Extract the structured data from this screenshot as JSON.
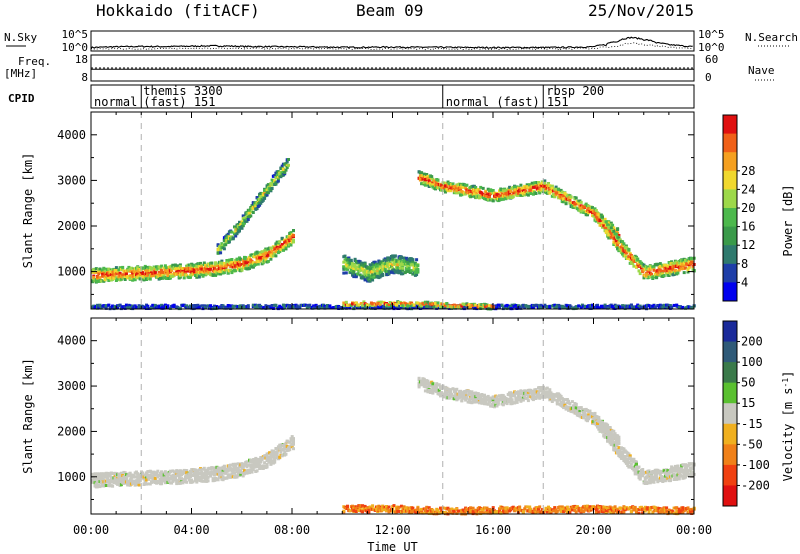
{
  "header": {
    "site": "Hokkaido (fitACF)",
    "beam": "Beam 09",
    "date": "25/Nov/2015"
  },
  "chart_data": [
    {
      "type": "line",
      "panel": "noise",
      "left_label": "N.Sky",
      "right_label": "N.Search",
      "left_ticks": [
        "10^5",
        "10^0"
      ],
      "right_ticks": [
        "10^5",
        "10^0"
      ],
      "y_scale": "log",
      "series": [
        {
          "name": "N.Sky",
          "style": "solid",
          "x": [
            0,
            1,
            2,
            3,
            4,
            5,
            6,
            7,
            8,
            9,
            10,
            11,
            12,
            13,
            14,
            15,
            16,
            17,
            18,
            19,
            20,
            20.5,
            21,
            21.5,
            22,
            22.5,
            23,
            23.5,
            24
          ],
          "y": [
            5,
            8,
            10,
            9,
            12,
            15,
            10,
            9,
            8,
            7,
            6,
            6,
            7,
            6,
            6,
            5,
            5,
            5,
            5,
            6,
            8,
            30,
            300,
            3000,
            800,
            100,
            30,
            15,
            8
          ]
        },
        {
          "name": "N.Search",
          "style": "dotted",
          "x": [
            0,
            6,
            12,
            18,
            20,
            21,
            21.5,
            22,
            23,
            24
          ],
          "y": [
            2,
            3,
            2,
            2,
            3,
            10,
            100,
            30,
            5,
            3
          ]
        }
      ]
    },
    {
      "type": "line",
      "panel": "frequency",
      "left_label": "Freq. [MHz]",
      "right_label": "Nave",
      "left_ticks": [
        18,
        8
      ],
      "right_ticks": [
        60,
        0
      ],
      "ylim": [
        8,
        18
      ],
      "series": [
        {
          "name": "Freq.",
          "style": "solid",
          "x": [
            0,
            24
          ],
          "y": [
            11,
            11
          ]
        },
        {
          "name": "Nave",
          "style": "dotted",
          "x": [
            0,
            24
          ],
          "y": [
            30,
            30
          ]
        }
      ]
    },
    {
      "type": "table",
      "panel": "CPID",
      "label": "CPID",
      "segments": [
        {
          "start": 0,
          "end": 2,
          "text": "normal"
        },
        {
          "start": 2,
          "end": 14,
          "text": "themis 3300",
          "text2": "(fast) 151"
        },
        {
          "start": 14,
          "end": 18,
          "text": "normal (fast) 151"
        },
        {
          "start": 18,
          "end": 24,
          "text": "rbsp 200"
        }
      ]
    },
    {
      "type": "heatmap",
      "panel": "power",
      "ylabel": "Slant Range [km]",
      "ylim": [
        180,
        4500
      ],
      "yticks": [
        1000,
        2000,
        3000,
        4000
      ],
      "color_label": "Power [dB]",
      "color_ticks": [
        4,
        8,
        12,
        16,
        20,
        24,
        28
      ],
      "colors": [
        "#0000ee",
        "#1e3ea8",
        "#2f7a6e",
        "#3a9a4a",
        "#4cb84c",
        "#9dd84a",
        "#f1d82e",
        "#f5a020",
        "#f06018",
        "#e01010"
      ],
      "scatter_bands": [
        {
          "t": [
            0,
            2,
            4,
            5,
            6,
            7,
            8
          ],
          "r": [
            950,
            1000,
            1050,
            1100,
            1200,
            1400,
            1800
          ],
          "width_km": 300,
          "level": "high"
        },
        {
          "t": [
            5,
            5.8,
            6.5,
            7.2,
            7.8
          ],
          "r": [
            1500,
            2000,
            2500,
            3000,
            3400
          ],
          "width_km": 250,
          "level": "mid"
        },
        {
          "t": [
            10,
            11,
            12,
            13
          ],
          "r": [
            1200,
            1000,
            1200,
            1100
          ],
          "width_km": 400,
          "level": "mid"
        },
        {
          "t": [
            13,
            14,
            15,
            16,
            17,
            18,
            19,
            20,
            21
          ],
          "r": [
            3100,
            2900,
            2800,
            2700,
            2800,
            2900,
            2600,
            2300,
            1800
          ],
          "width_km": 250,
          "level": "high"
        },
        {
          "t": [
            20,
            21,
            22,
            23,
            24
          ],
          "r": [
            2300,
            1600,
            1000,
            1100,
            1200
          ],
          "width_km": 300,
          "level": "high"
        },
        {
          "t": [
            0,
            6,
            12,
            18,
            24
          ],
          "r": [
            260,
            260,
            260,
            260,
            260
          ],
          "width_km": 80,
          "level": "low"
        },
        {
          "t": [
            10,
            11,
            12,
            13,
            14,
            15,
            16
          ],
          "r": [
            320,
            330,
            330,
            320,
            300,
            280,
            260
          ],
          "width_km": 100,
          "level": "high"
        }
      ]
    },
    {
      "type": "heatmap",
      "panel": "velocity",
      "ylabel": "Slant Range [km]",
      "xlabel": "Time UT",
      "ylim": [
        180,
        4500
      ],
      "yticks": [
        1000,
        2000,
        3000,
        4000
      ],
      "xticks": [
        "00:00",
        "04:00",
        "08:00",
        "12:00",
        "16:00",
        "20:00",
        "00:00"
      ],
      "xlim_hours": [
        0,
        24
      ],
      "color_label": "Velocity [m s^-1]",
      "color_ticks": [
        200,
        100,
        50,
        15,
        -15,
        -50,
        -100,
        -200
      ],
      "colors": [
        "#1a2a9a",
        "#2f5a78",
        "#3a7a4a",
        "#5ac030",
        "#c8c8c0",
        "#f0b020",
        "#f08018",
        "#f04010",
        "#e01010"
      ],
      "scatter_bands": [
        {
          "t": [
            0,
            2,
            4,
            5,
            6,
            7,
            8
          ],
          "r": [
            950,
            1000,
            1050,
            1100,
            1200,
            1400,
            1800
          ],
          "width_km": 300,
          "level": "ground"
        },
        {
          "t": [
            13,
            14,
            15,
            16,
            17,
            18,
            19,
            20,
            21
          ],
          "r": [
            3100,
            2900,
            2800,
            2700,
            2800,
            2900,
            2600,
            2300,
            1800
          ],
          "width_km": 250,
          "level": "ground"
        },
        {
          "t": [
            20,
            21,
            22,
            23,
            24
          ],
          "r": [
            2300,
            1600,
            1000,
            1100,
            1200
          ],
          "width_km": 300,
          "level": "ground"
        },
        {
          "t": [
            10,
            11,
            12,
            13,
            14,
            15,
            16,
            18,
            20,
            22,
            24
          ],
          "r": [
            330,
            330,
            330,
            300,
            280,
            280,
            300,
            300,
            320,
            300,
            280
          ],
          "width_km": 140,
          "level": "negative"
        }
      ]
    }
  ]
}
